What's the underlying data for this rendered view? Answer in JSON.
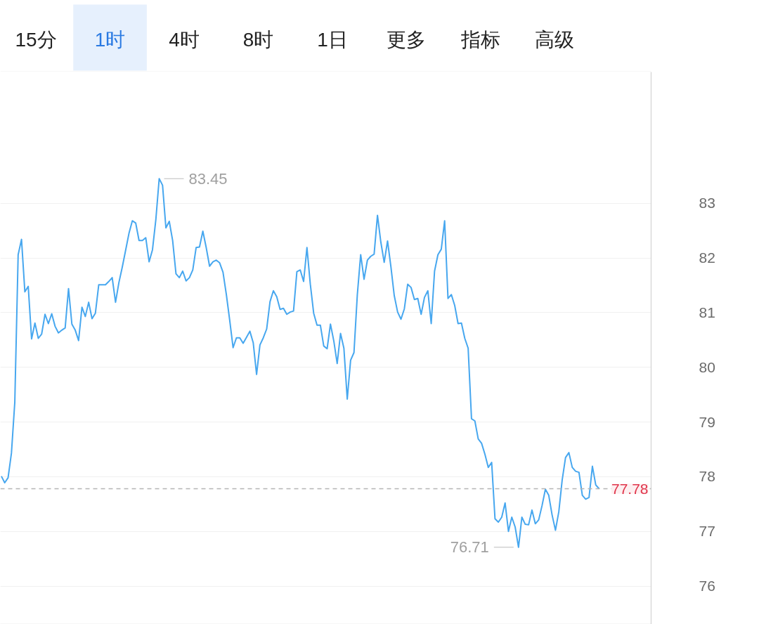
{
  "chart_data": {
    "type": "line",
    "annotations": [
      "15分",
      "1时",
      "4时",
      "8时",
      "1日",
      "更多",
      "指标",
      "高级"
    ],
    "categories": [
      null,
      null,
      null,
      null,
      null,
      null,
      null,
      null,
      null,
      null,
      null,
      null,
      null,
      null,
      null,
      null,
      null,
      null,
      null,
      null,
      null,
      null,
      null,
      null,
      null,
      null,
      null,
      null,
      null,
      null,
      null,
      null,
      null,
      null,
      null,
      null,
      null,
      null,
      null,
      null,
      null,
      null,
      null,
      null,
      null,
      null,
      null,
      null,
      null,
      null,
      null,
      null,
      null,
      null,
      null,
      null,
      null,
      null,
      null,
      null,
      null,
      null,
      null,
      null,
      null,
      null,
      null,
      null,
      null,
      null,
      null,
      null,
      null,
      null,
      null,
      null,
      null,
      null,
      null,
      null,
      null,
      null,
      null,
      null,
      null,
      null,
      null,
      null,
      null,
      null,
      null,
      null,
      null,
      null,
      null,
      null,
      null,
      null,
      null,
      null,
      null,
      null,
      null,
      null,
      null,
      null,
      null,
      null,
      null,
      null,
      null,
      null,
      null,
      null,
      null,
      null,
      null,
      null,
      null,
      null,
      null,
      null,
      null,
      null,
      null,
      null,
      null,
      null,
      null,
      null,
      null,
      null,
      null,
      null,
      null,
      null,
      null,
      null,
      null,
      null,
      null,
      null,
      null,
      null,
      null,
      null,
      null,
      null,
      null,
      null,
      null,
      null,
      null,
      null,
      null,
      null,
      null,
      null,
      null,
      null,
      null,
      null,
      null,
      null,
      null,
      null,
      null,
      null,
      null,
      null,
      null,
      null,
      null,
      null,
      null,
      null,
      null,
      null,
      null
    ],
    "series": [
      {
        "color": "#47a7ef",
        "values": [
          78.01,
          77.89,
          77.98,
          78.43,
          79.36,
          82.06,
          82.34,
          81.38,
          81.48,
          80.52,
          80.81,
          80.53,
          80.61,
          80.97,
          80.8,
          80.98,
          80.75,
          80.63,
          80.68,
          80.72,
          81.44,
          80.79,
          80.68,
          80.49,
          81.1,
          80.93,
          81.19,
          80.89,
          80.99,
          81.51,
          81.51,
          81.51,
          81.57,
          81.64,
          81.19,
          81.55,
          81.83,
          82.14,
          82.45,
          82.68,
          82.64,
          82.32,
          82.32,
          82.37,
          81.93,
          82.15,
          82.7,
          83.45,
          83.33,
          82.55,
          82.67,
          82.32,
          81.71,
          81.64,
          81.76,
          81.58,
          81.64,
          81.78,
          82.19,
          82.2,
          82.49,
          82.19,
          81.85,
          81.93,
          81.96,
          81.91,
          81.74,
          81.33,
          80.86,
          80.36,
          80.54,
          80.54,
          80.44,
          80.55,
          80.66,
          80.45,
          79.87,
          80.41,
          80.54,
          80.7,
          81.2,
          81.4,
          81.29,
          81.06,
          81.08,
          80.97,
          81.01,
          81.03,
          81.75,
          81.78,
          81.57,
          82.19,
          81.52,
          80.99,
          80.77,
          80.77,
          80.39,
          80.34,
          80.79,
          80.48,
          80.07,
          80.62,
          80.35,
          79.42,
          80.13,
          80.27,
          81.33,
          82.06,
          81.61,
          81.96,
          82.03,
          82.07,
          82.78,
          82.29,
          81.92,
          82.31,
          81.84,
          81.31,
          81.01,
          80.88,
          81.07,
          81.52,
          81.46,
          81.24,
          81.26,
          80.97,
          81.28,
          81.4,
          80.8,
          81.76,
          82.06,
          82.16,
          82.68,
          81.26,
          81.33,
          81.13,
          80.8,
          80.81,
          80.53,
          80.35,
          79.06,
          79.02,
          78.69,
          78.61,
          78.41,
          78.17,
          78.26,
          77.23,
          77.17,
          77.26,
          77.52,
          77.0,
          77.26,
          77.08,
          76.71,
          77.26,
          77.13,
          77.12,
          77.39,
          77.14,
          77.21,
          77.47,
          77.77,
          77.66,
          77.3,
          77.02,
          77.36,
          77.94,
          78.35,
          78.44,
          78.17,
          78.1,
          78.08,
          77.66,
          77.59,
          77.62,
          78.19,
          77.85,
          77.78
        ],
        "value_labels": [
          null,
          null,
          null,
          null,
          null,
          null,
          null,
          null,
          null,
          null,
          null,
          null,
          null,
          null,
          null,
          null,
          null,
          null,
          null,
          null,
          null,
          null,
          null,
          null,
          null,
          null,
          null,
          null,
          null,
          null,
          null,
          null,
          null,
          null,
          null,
          null,
          null,
          null,
          null,
          null,
          null,
          null,
          null,
          null,
          null,
          null,
          null,
          "83.45",
          null,
          null,
          null,
          null,
          null,
          null,
          null,
          null,
          null,
          null,
          null,
          null,
          null,
          null,
          null,
          null,
          null,
          null,
          null,
          null,
          null,
          null,
          null,
          null,
          null,
          null,
          null,
          null,
          null,
          null,
          null,
          null,
          null,
          null,
          null,
          null,
          null,
          null,
          null,
          null,
          null,
          null,
          null,
          null,
          null,
          null,
          null,
          null,
          null,
          null,
          null,
          null,
          null,
          null,
          null,
          null,
          null,
          null,
          null,
          null,
          null,
          null,
          null,
          null,
          null,
          null,
          null,
          null,
          null,
          null,
          null,
          null,
          null,
          null,
          null,
          null,
          null,
          null,
          null,
          null,
          null,
          null,
          null,
          null,
          null,
          null,
          null,
          null,
          null,
          null,
          null,
          null,
          null,
          null,
          null,
          null,
          null,
          null,
          null,
          null,
          null,
          null,
          null,
          null,
          null,
          null,
          "76.71",
          null,
          null,
          null,
          null,
          null,
          null,
          null,
          null,
          null,
          null,
          null,
          null,
          null,
          null,
          null,
          null,
          null,
          null,
          null,
          null,
          null,
          null,
          null,
          null
        ]
      }
    ],
    "ylim": [
      75.3,
      85.4
    ],
    "yticks": [
      76,
      77,
      78,
      79,
      80,
      81,
      82,
      83
    ],
    "ref_lines": [
      {
        "axis": "y",
        "value": 77.78,
        "label": "77.78",
        "color": "#b4b4b4",
        "line_style": "dashed"
      }
    ],
    "grid": "y",
    "tick_labels": "y"
  }
}
